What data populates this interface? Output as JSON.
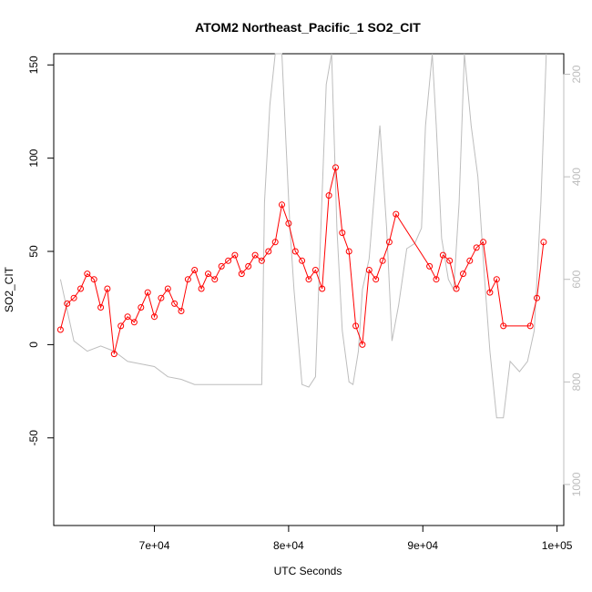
{
  "chart_data": {
    "type": "line",
    "title": "ATOM2 Northeast_Pacific_1 SO2_CIT",
    "xlabel": "UTC Seconds",
    "ylabel": "SO2_CIT",
    "xlim": [
      62500,
      100500
    ],
    "ylim": [
      -97,
      156
    ],
    "x_ticks": [
      {
        "value": 70000,
        "label": "7e+04"
      },
      {
        "value": 80000,
        "label": "8e+04"
      },
      {
        "value": 90000,
        "label": "9e+04"
      },
      {
        "value": 100000,
        "label": "1e+05"
      }
    ],
    "y_ticks": [
      {
        "value": -50,
        "label": "-50"
      },
      {
        "value": 0,
        "label": "0"
      },
      {
        "value": 50,
        "label": "50"
      },
      {
        "value": 100,
        "label": "100"
      },
      {
        "value": 150,
        "label": "150"
      }
    ],
    "y2lim": [
      1080,
      160
    ],
    "y2_reversed": true,
    "y2_ticks": [
      {
        "value": 200,
        "label": "200"
      },
      {
        "value": 400,
        "label": "400"
      },
      {
        "value": 600,
        "label": "600"
      },
      {
        "value": 800,
        "label": "800"
      },
      {
        "value": 1000,
        "label": "1000"
      }
    ],
    "grid": false,
    "series": [
      {
        "role": "primary",
        "color": "#ff0000",
        "marker": "open-circle",
        "x": [
          63000,
          63500,
          64000,
          64500,
          65000,
          65500,
          66000,
          66500,
          67000,
          67500,
          68000,
          68500,
          69000,
          69500,
          70000,
          70500,
          71000,
          71500,
          72000,
          72500,
          73000,
          73500,
          74000,
          74500,
          75000,
          75500,
          76000,
          76500,
          77000,
          77500,
          78000,
          78500,
          79000,
          79500,
          80000,
          80500,
          81000,
          81500,
          82000,
          82500,
          83000,
          83500,
          84000,
          84500,
          85000,
          85500,
          86000,
          86500,
          87000,
          87500,
          88000,
          90500,
          91000,
          91500,
          92000,
          92500,
          93000,
          93500,
          94000,
          94500,
          95000,
          95500,
          96000,
          98000,
          98500,
          99000
        ],
        "y": [
          8,
          22,
          25,
          30,
          38,
          35,
          20,
          30,
          -5,
          10,
          15,
          12,
          20,
          28,
          15,
          25,
          30,
          22,
          18,
          35,
          40,
          30,
          38,
          35,
          42,
          45,
          48,
          38,
          42,
          48,
          45,
          50,
          55,
          75,
          65,
          50,
          45,
          35,
          40,
          30,
          80,
          95,
          60,
          50,
          10,
          0,
          40,
          35,
          45,
          55,
          70,
          42,
          35,
          48,
          45,
          30,
          38,
          45,
          52,
          55,
          28,
          35,
          10,
          10,
          25,
          55
        ]
      },
      {
        "role": "secondary",
        "color": "#bdbdbd",
        "marker": "none",
        "x": [
          63000,
          64000,
          65000,
          66000,
          67000,
          68000,
          69000,
          70000,
          71000,
          72000,
          73000,
          74000,
          75000,
          76000,
          77000,
          78000,
          78200,
          78600,
          79000,
          79500,
          79800,
          80100,
          80400,
          81000,
          81500,
          82000,
          82400,
          82800,
          83200,
          83600,
          84000,
          84500,
          84800,
          85200,
          85500,
          86000,
          86400,
          86800,
          87300,
          87700,
          88200,
          88800,
          89400,
          89900,
          90200,
          90700,
          91000,
          91400,
          91900,
          92300,
          92700,
          93100,
          93600,
          94100,
          94600,
          95000,
          95500,
          96000,
          96500,
          97200,
          97800,
          98300,
          98800,
          99200
        ],
        "y": [
          600,
          720,
          740,
          730,
          740,
          760,
          765,
          770,
          790,
          795,
          805,
          805,
          805,
          805,
          805,
          805,
          450,
          260,
          160,
          160,
          330,
          500,
          620,
          805,
          810,
          790,
          500,
          220,
          160,
          500,
          700,
          800,
          805,
          740,
          620,
          560,
          430,
          300,
          500,
          720,
          650,
          540,
          530,
          500,
          300,
          160,
          300,
          520,
          600,
          620,
          450,
          160,
          300,
          400,
          600,
          740,
          870,
          870,
          760,
          780,
          760,
          700,
          450,
          160
        ]
      }
    ]
  }
}
